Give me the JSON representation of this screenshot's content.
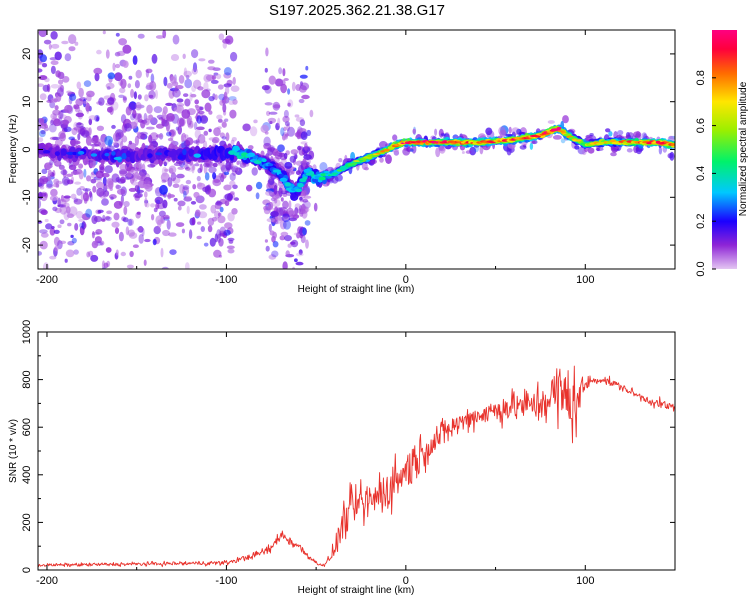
{
  "figure_title": "S197.2025.362.21.38.G17",
  "chart_data": [
    {
      "type": "heatmap",
      "title": "S197.2025.362.21.38.G17",
      "xlabel": "Height of straight line (km)",
      "ylabel": "Frequency (Hz)",
      "xlim": [
        -205,
        150
      ],
      "ylim": [
        -25,
        25
      ],
      "xticks": [
        -200,
        -100,
        0,
        100
      ],
      "yticks": [
        -20,
        -10,
        0,
        10,
        20
      ],
      "grid": false,
      "colorbar": {
        "label": "Normalized spectral amplitude",
        "range": [
          0,
          1
        ],
        "ticks": [
          0.0,
          0.2,
          0.4,
          0.6,
          0.8
        ],
        "colors": [
          "#e4c6f2",
          "#8e25d6",
          "#1a00ff",
          "#00c8ff",
          "#00f26a",
          "#9bef00",
          "#ffe600",
          "#ff6a00",
          "#ff003c",
          "#ff0080"
        ]
      },
      "ridge": {
        "description": "frequency of peak spectral amplitude vs height",
        "x": [
          -205,
          -190,
          -175,
          -160,
          -145,
          -130,
          -115,
          -100,
          -90,
          -80,
          -70,
          -62,
          -55,
          -48,
          -40,
          -30,
          -20,
          -10,
          -5,
          0,
          20,
          40,
          60,
          75,
          85,
          90,
          100,
          110,
          125,
          140,
          150
        ],
        "frequency": [
          0,
          -1,
          -1,
          -1.5,
          -1,
          -1,
          -1,
          -0.5,
          -1,
          -2.5,
          -5,
          -9,
          -5,
          -6,
          -5,
          -3,
          -1.5,
          0,
          1,
          1.5,
          1.5,
          1.5,
          2,
          3,
          4.5,
          3,
          1,
          1.5,
          1.5,
          1.5,
          1
        ],
        "amplitude": [
          0.2,
          0.25,
          0.25,
          0.3,
          0.25,
          0.25,
          0.3,
          0.35,
          0.4,
          0.35,
          0.3,
          0.35,
          0.35,
          0.4,
          0.45,
          0.55,
          0.65,
          0.75,
          0.85,
          0.95,
          0.9,
          0.85,
          0.85,
          0.9,
          0.95,
          0.7,
          0.6,
          0.7,
          0.8,
          0.9,
          0.9
        ]
      }
    },
    {
      "type": "line",
      "xlabel": "Height of straight line (km)",
      "ylabel": "SNR (10 * v/v)",
      "xlim": [
        -205,
        150
      ],
      "ylim": [
        0,
        1000
      ],
      "xticks": [
        -200,
        -100,
        0,
        100
      ],
      "yticks": [
        0,
        200,
        400,
        600,
        800,
        1000
      ],
      "grid": false,
      "series": [
        {
          "name": "SNR",
          "color": "#e8322c",
          "x": [
            -205,
            -150,
            -100,
            -85,
            -75,
            -70,
            -60,
            -50,
            -45,
            -40,
            -35,
            -30,
            -25,
            -20,
            -15,
            -10,
            -5,
            0,
            10,
            20,
            30,
            40,
            50,
            60,
            70,
            80,
            85,
            90,
            95,
            100,
            105,
            110,
            120,
            130,
            140,
            150
          ],
          "mean": [
            20,
            25,
            30,
            60,
            90,
            150,
            100,
            30,
            20,
            80,
            200,
            260,
            280,
            280,
            320,
            340,
            380,
            420,
            500,
            570,
            620,
            650,
            670,
            690,
            690,
            720,
            740,
            720,
            700,
            780,
            800,
            800,
            770,
            730,
            700,
            680
          ],
          "spread": [
            8,
            10,
            12,
            15,
            25,
            30,
            25,
            10,
            10,
            40,
            90,
            110,
            110,
            120,
            120,
            120,
            120,
            120,
            90,
            70,
            60,
            60,
            70,
            80,
            90,
            130,
            180,
            200,
            170,
            40,
            25,
            20,
            20,
            20,
            25,
            25
          ]
        }
      ]
    }
  ]
}
